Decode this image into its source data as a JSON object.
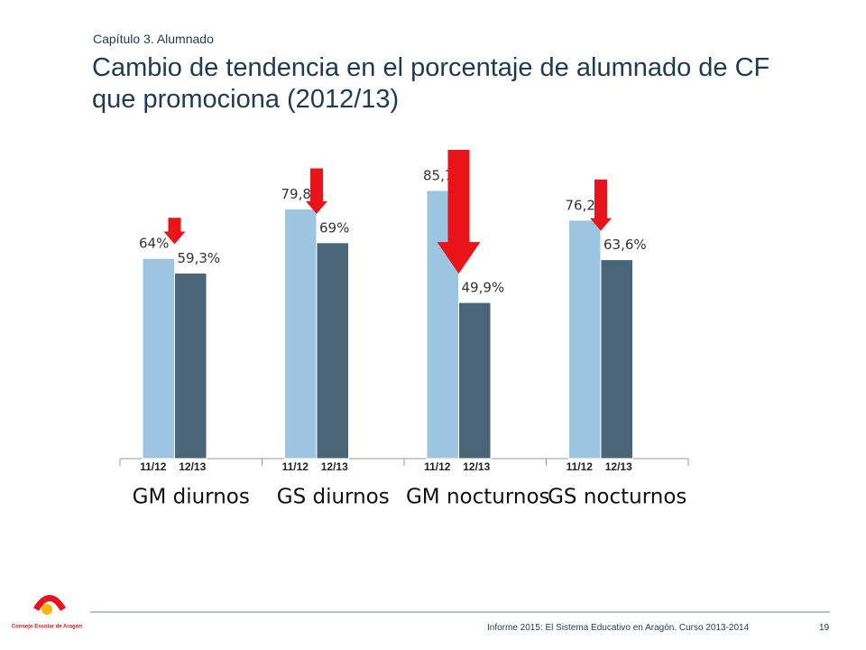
{
  "header": {
    "chapter": "Capítulo 3. Alumnado",
    "title": "Cambio de tendencia en el porcentaje de alumnado de CF que promociona (2012/13)"
  },
  "chart_data": {
    "type": "bar",
    "categories": [
      "GM diurnos",
      "GS diurnos",
      "GM nocturnos",
      "GS nocturnos"
    ],
    "series": [
      {
        "name": "11/12",
        "color": "#9dc4e0",
        "values": [
          64,
          79.8,
          85.7,
          76.2
        ],
        "value_labels": [
          "64%",
          "79,8%",
          "85,7%",
          "76,2%"
        ]
      },
      {
        "name": "12/13",
        "color": "#4a6578",
        "values": [
          59.3,
          69,
          49.9,
          63.6
        ],
        "value_labels": [
          "59,3%",
          "69%",
          "49,9%",
          "63,6%"
        ]
      }
    ],
    "arrow_color": "#e8141a"
  },
  "footer": {
    "text": "Informe 2015: El Sistema Educativo en Aragón. Curso 2013-2014",
    "page": "19",
    "logo_text": "Consejo Escolar de Aragón"
  }
}
